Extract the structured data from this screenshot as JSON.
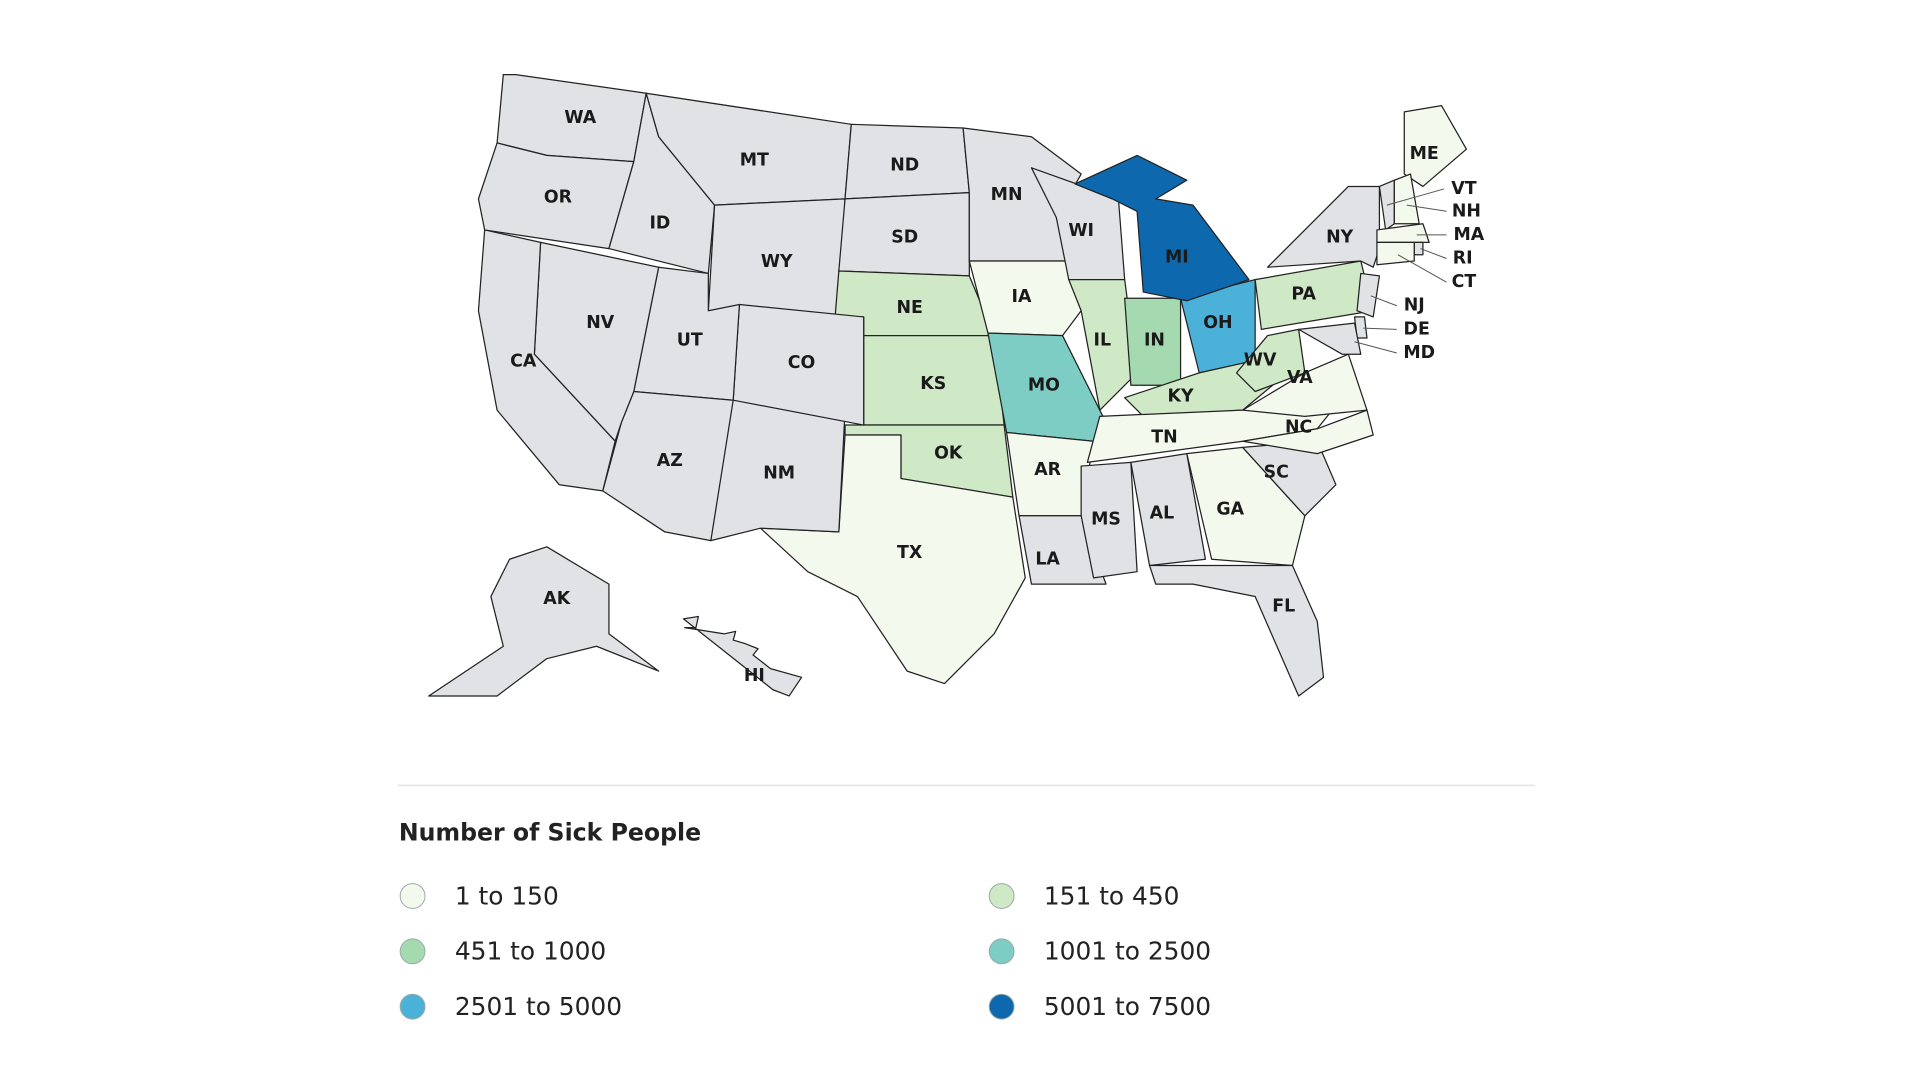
{
  "map": {
    "states": [
      {
        "label": "WA",
        "color": "#e1e2e5"
      },
      {
        "label": "OR",
        "color": "#e1e2e5"
      },
      {
        "label": "ID",
        "color": "#e1e2e5"
      },
      {
        "label": "MT",
        "color": "#e1e2e5"
      },
      {
        "label": "WY",
        "color": "#e1e2e5"
      },
      {
        "label": "ND",
        "color": "#e1e2e5"
      },
      {
        "label": "SD",
        "color": "#e1e2e5"
      },
      {
        "label": "NE",
        "color": "#cfe8c6"
      },
      {
        "label": "KS",
        "color": "#cfe8c6"
      },
      {
        "label": "OK",
        "color": "#cfe8c6"
      },
      {
        "label": "TX",
        "color": "#f4f9ee"
      },
      {
        "label": "NM",
        "color": "#e1e2e5"
      },
      {
        "label": "CO",
        "color": "#e1e2e5"
      },
      {
        "label": "UT",
        "color": "#e1e2e5"
      },
      {
        "label": "AZ",
        "color": "#e1e2e5"
      },
      {
        "label": "NV",
        "color": "#e1e2e5"
      },
      {
        "label": "CA",
        "color": "#e1e2e5"
      },
      {
        "label": "MN",
        "color": "#e1e2e5"
      },
      {
        "label": "IA",
        "color": "#f4f9ee"
      },
      {
        "label": "MO",
        "color": "#7ecdc4"
      },
      {
        "label": "AR",
        "color": "#f4f9ee"
      },
      {
        "label": "LA",
        "color": "#e1e2e5"
      },
      {
        "label": "WI",
        "color": "#e1e2e5"
      },
      {
        "label": "IL",
        "color": "#cfe8c6"
      },
      {
        "label": "IN",
        "color": "#a5d9b0"
      },
      {
        "label": "OH",
        "color": "#4cb1d8"
      },
      {
        "label": "MI",
        "color": "#0d68ae"
      },
      {
        "label": "KY",
        "color": "#cfe8c6"
      },
      {
        "label": "TN",
        "color": "#f4f9ee"
      },
      {
        "label": "MS",
        "color": "#e1e2e5"
      },
      {
        "label": "AL",
        "color": "#e1e2e5"
      },
      {
        "label": "GA",
        "color": "#f4f9ee"
      },
      {
        "label": "FL",
        "color": "#e1e2e5"
      },
      {
        "label": "SC",
        "color": "#e1e2e5"
      },
      {
        "label": "NC",
        "color": "#f4f9ee"
      },
      {
        "label": "VA",
        "color": "#f4f9ee"
      },
      {
        "label": "WV",
        "color": "#cfe8c6"
      },
      {
        "label": "PA",
        "color": "#cfe8c6"
      },
      {
        "label": "NY",
        "color": "#e1e2e5"
      },
      {
        "label": "ME",
        "color": "#f4f9ee"
      },
      {
        "label": "VT",
        "color": "#e1e2e5"
      },
      {
        "label": "NH",
        "color": "#f4f9ee"
      },
      {
        "label": "MA",
        "color": "#f4f9ee"
      },
      {
        "label": "RI",
        "color": "#e1e2e5"
      },
      {
        "label": "CT",
        "color": "#f4f9ee"
      },
      {
        "label": "NJ",
        "color": "#e1e2e5"
      },
      {
        "label": "DE",
        "color": "#e1e2e5"
      },
      {
        "label": "MD",
        "color": "#e1e2e5"
      },
      {
        "label": "AK",
        "color": "#e1e2e5"
      },
      {
        "label": "HI",
        "color": "#e1e2e5"
      }
    ]
  },
  "legend": {
    "title": "Number of Sick People",
    "items": [
      {
        "label": "1 to 150",
        "color": "#f4f9ee"
      },
      {
        "label": "151 to 450",
        "color": "#cfe8c6"
      },
      {
        "label": "451 to 1000",
        "color": "#a5d9b0"
      },
      {
        "label": "1001 to 2500",
        "color": "#7ecdc4"
      },
      {
        "label": "2501 to 5000",
        "color": "#4cb1d8"
      },
      {
        "label": "5001 to 7500",
        "color": "#0d68ae"
      }
    ]
  }
}
